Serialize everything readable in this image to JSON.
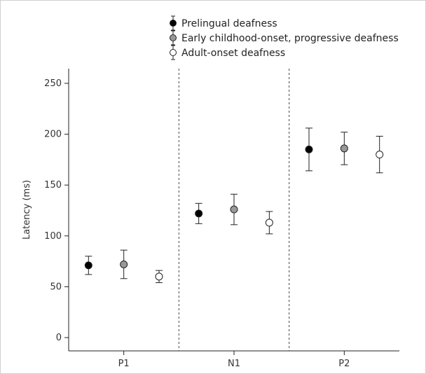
{
  "chart_data": {
    "type": "scatter",
    "categories": [
      "P1",
      "N1",
      "P2"
    ],
    "xlabel": "",
    "ylabel": "Latency (ms)",
    "ylim": [
      0,
      260
    ],
    "yticks": [
      0,
      50,
      100,
      150,
      200,
      250
    ],
    "grid": false,
    "legend_position": "top-right",
    "error_bars": true,
    "series": [
      {
        "name": "Prelingual deafness",
        "color": "#000000",
        "values": [
          71,
          122,
          185
        ],
        "errors": [
          9,
          10,
          21
        ]
      },
      {
        "name": "Early childhood-onset, progressive deafness",
        "color": "#999999",
        "values": [
          72,
          126,
          186
        ],
        "errors": [
          14,
          15,
          16
        ]
      },
      {
        "name": "Adult-onset deafness",
        "color": "#ffffff",
        "values": [
          60,
          113,
          180
        ],
        "errors": [
          6,
          11,
          18
        ]
      }
    ]
  }
}
